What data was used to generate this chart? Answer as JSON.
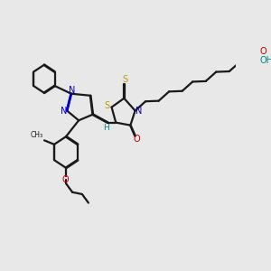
{
  "bg_color": "#e8e8e8",
  "bond_color": "#1a1a1a",
  "N_color": "#0000cc",
  "O_color": "#cc0000",
  "S_color": "#b8a000",
  "H_color": "#008888",
  "line_width": 1.6,
  "figsize": [
    3.0,
    3.0
  ],
  "dpi": 100,
  "xlim": [
    0,
    10
  ],
  "ylim": [
    0,
    10
  ]
}
